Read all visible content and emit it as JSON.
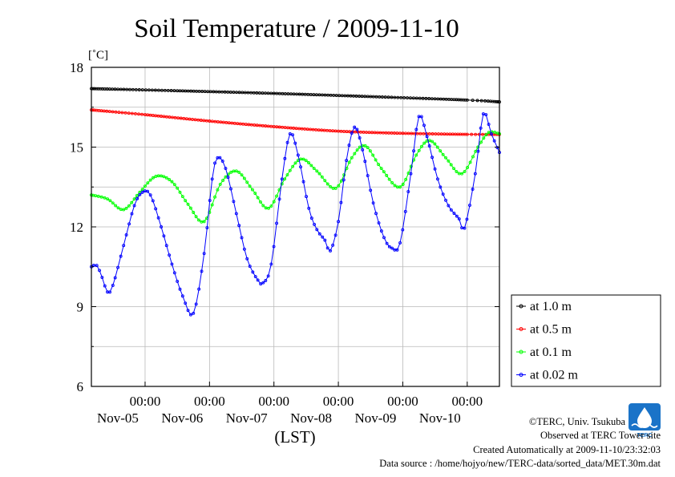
{
  "chart_data": {
    "type": "line",
    "title": "Soil Temperature / 2009-11-10",
    "ylabel": "[˚C]",
    "xlabel": "(LST)",
    "ylim": [
      6,
      18
    ],
    "xlim": [
      "2009-11-04 04:00",
      "2009-11-10 12:00"
    ],
    "grid": true,
    "legend_placement": "bottom-right outside plot",
    "y_ticks": [
      {
        "value": 6,
        "label": "6"
      },
      {
        "value": 9,
        "label": "9"
      },
      {
        "value": 12,
        "label": "12"
      },
      {
        "value": 15,
        "label": "15"
      },
      {
        "value": 18,
        "label": "18"
      }
    ],
    "x_ticks": [
      {
        "time": "2009-11-05 00:00",
        "label": "00:00",
        "date": "Nov-05"
      },
      {
        "time": "2009-11-06 00:00",
        "label": "00:00",
        "date": "Nov-06"
      },
      {
        "time": "2009-11-07 00:00",
        "label": "00:00",
        "date": "Nov-07"
      },
      {
        "time": "2009-11-08 00:00",
        "label": "00:00",
        "date": "Nov-08"
      },
      {
        "time": "2009-11-09 00:00",
        "label": "00:00",
        "date": "Nov-09"
      },
      {
        "time": "2009-11-10 00:00",
        "label": "00:00",
        "date": "Nov-10"
      }
    ],
    "series": [
      {
        "name": "at 1.0 m",
        "color": "#000000",
        "points": [
          [
            "2009-11-04 04:00",
            17.2
          ],
          [
            "2009-11-05 12:00",
            17.12
          ],
          [
            "2009-11-07 00:00",
            17.02
          ],
          [
            "2009-11-08 12:00",
            16.9
          ],
          [
            "2009-11-10 00:00",
            16.77
          ],
          [
            "2009-11-10 12:00",
            16.7
          ]
        ]
      },
      {
        "name": "at 0.5 m",
        "color": "#ff0000",
        "points": [
          [
            "2009-11-04 04:00",
            16.4
          ],
          [
            "2009-11-05 00:00",
            16.22
          ],
          [
            "2009-11-06 00:00",
            15.98
          ],
          [
            "2009-11-07 00:00",
            15.77
          ],
          [
            "2009-11-08 00:00",
            15.6
          ],
          [
            "2009-11-09 00:00",
            15.52
          ],
          [
            "2009-11-10 00:00",
            15.48
          ],
          [
            "2009-11-10 12:00",
            15.48
          ]
        ]
      },
      {
        "name": "at 0.1 m",
        "color": "#00ff00",
        "points": [
          [
            "2009-11-04 04:00",
            13.2
          ],
          [
            "2009-11-04 10:00",
            13.05
          ],
          [
            "2009-11-04 16:00",
            12.65
          ],
          [
            "2009-11-04 22:00",
            13.3
          ],
          [
            "2009-11-05 04:00",
            13.9
          ],
          [
            "2009-11-05 10:00",
            13.7
          ],
          [
            "2009-11-05 16:00",
            12.85
          ],
          [
            "2009-11-05 22:00",
            12.2
          ],
          [
            "2009-11-06 04:00",
            13.6
          ],
          [
            "2009-11-06 10:00",
            14.1
          ],
          [
            "2009-11-06 16:00",
            13.4
          ],
          [
            "2009-11-06 22:00",
            12.7
          ],
          [
            "2009-11-07 04:00",
            13.8
          ],
          [
            "2009-11-07 10:00",
            14.55
          ],
          [
            "2009-11-07 16:00",
            14.1
          ],
          [
            "2009-11-07 23:00",
            13.45
          ],
          [
            "2009-11-08 05:00",
            14.6
          ],
          [
            "2009-11-08 10:00",
            15.05
          ],
          [
            "2009-11-08 16:00",
            14.2
          ],
          [
            "2009-11-08 23:00",
            13.5
          ],
          [
            "2009-11-09 05:00",
            14.7
          ],
          [
            "2009-11-09 10:00",
            15.25
          ],
          [
            "2009-11-09 16:00",
            14.6
          ],
          [
            "2009-11-09 22:00",
            14.0
          ],
          [
            "2009-11-10 04:00",
            15.0
          ],
          [
            "2009-11-10 08:00",
            15.55
          ],
          [
            "2009-11-10 12:00",
            15.5
          ]
        ]
      },
      {
        "name": "at 0.02 m",
        "color": "#0000ff",
        "points": [
          [
            "2009-11-04 04:00",
            10.5
          ],
          [
            "2009-11-04 06:00",
            10.55
          ],
          [
            "2009-11-04 08:00",
            10.1
          ],
          [
            "2009-11-04 10:00",
            9.55
          ],
          [
            "2009-11-04 12:00",
            9.8
          ],
          [
            "2009-11-04 16:00",
            11.3
          ],
          [
            "2009-11-04 20:00",
            12.8
          ],
          [
            "2009-11-04 23:00",
            13.3
          ],
          [
            "2009-11-05 02:00",
            13.2
          ],
          [
            "2009-11-05 06:00",
            12.0
          ],
          [
            "2009-11-05 10:00",
            10.6
          ],
          [
            "2009-11-05 14:00",
            9.4
          ],
          [
            "2009-11-05 18:00",
            8.75
          ],
          [
            "2009-11-05 22:00",
            11.0
          ],
          [
            "2009-11-06 01:00",
            13.8
          ],
          [
            "2009-11-06 03:00",
            14.6
          ],
          [
            "2009-11-06 06:00",
            14.2
          ],
          [
            "2009-11-06 10:00",
            12.5
          ],
          [
            "2009-11-06 14:00",
            10.8
          ],
          [
            "2009-11-06 18:00",
            10.0
          ],
          [
            "2009-11-06 20:00",
            9.9
          ],
          [
            "2009-11-06 23:00",
            10.6
          ],
          [
            "2009-11-07 03:00",
            13.8
          ],
          [
            "2009-11-07 06:00",
            15.5
          ],
          [
            "2009-11-07 09:00",
            14.7
          ],
          [
            "2009-11-07 13:00",
            12.7
          ],
          [
            "2009-11-07 16:00",
            11.9
          ],
          [
            "2009-11-07 19:00",
            11.5
          ],
          [
            "2009-11-07 21:00",
            11.1
          ],
          [
            "2009-11-08 00:00",
            12.2
          ],
          [
            "2009-11-08 03:00",
            14.5
          ],
          [
            "2009-11-08 06:00",
            15.75
          ],
          [
            "2009-11-08 09:00",
            14.9
          ],
          [
            "2009-11-08 13:00",
            12.9
          ],
          [
            "2009-11-08 17:00",
            11.6
          ],
          [
            "2009-11-08 20:00",
            11.2
          ],
          [
            "2009-11-08 23:00",
            11.4
          ],
          [
            "2009-11-09 03:00",
            14.0
          ],
          [
            "2009-11-09 06:00",
            16.15
          ],
          [
            "2009-11-09 09:00",
            15.4
          ],
          [
            "2009-11-09 13:00",
            13.8
          ],
          [
            "2009-11-09 17:00",
            12.8
          ],
          [
            "2009-11-09 21:00",
            12.3
          ],
          [
            "2009-11-09 23:00",
            11.95
          ],
          [
            "2009-11-10 03:00",
            14.0
          ],
          [
            "2009-11-10 06:00",
            16.25
          ],
          [
            "2009-11-10 09:00",
            15.5
          ],
          [
            "2009-11-10 12:00",
            14.8
          ]
        ]
      }
    ]
  },
  "footer": {
    "copyright": "©TERC, Univ. Tsukuba",
    "observed": "Observed at TERC Tower site",
    "created": "Created Automatically at 2009-11-10/23:32:03",
    "source": "Data source : /home/hojyo/new/TERC-data/sorted_data/MET.30m.dat"
  },
  "logo": {
    "text": "TERC",
    "color": "#1a73c8"
  }
}
